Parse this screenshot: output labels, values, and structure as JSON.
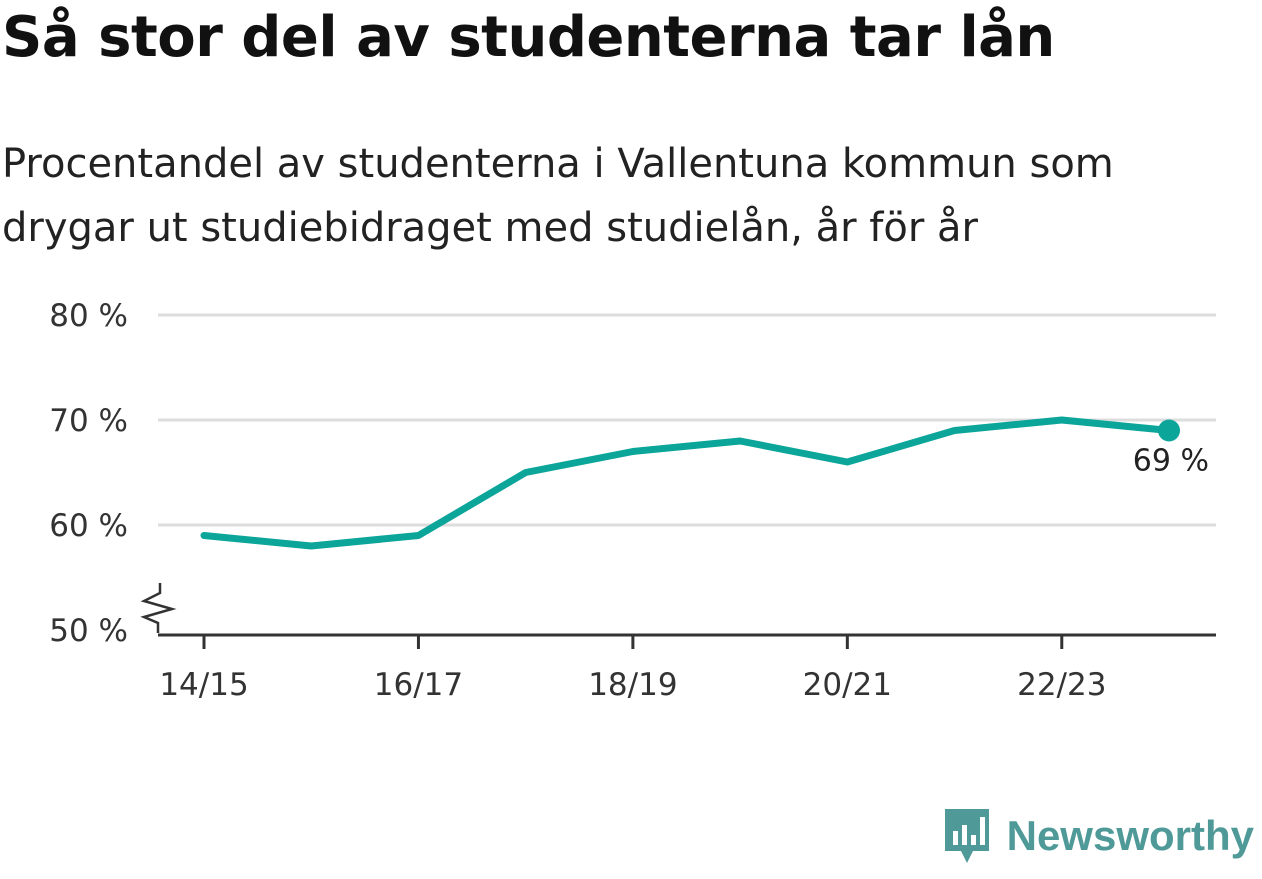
{
  "header": {
    "title": "Så stor del av studenterna tar lån",
    "subtitle": "Procentandel av studenterna i Vallentuna kommun som drygar ut studiebidraget med studielån, år för år"
  },
  "chart_data": {
    "type": "line",
    "x": [
      "14/15",
      "15/16",
      "16/17",
      "17/18",
      "18/19",
      "19/20",
      "20/21",
      "21/22",
      "22/23",
      "23/24"
    ],
    "x_tick_labels": [
      "14/15",
      "16/17",
      "18/19",
      "20/21",
      "22/23"
    ],
    "series": [
      {
        "values": [
          59,
          58,
          59,
          65,
          67,
          68,
          66,
          69,
          70,
          69
        ]
      }
    ],
    "y_ticks": [
      50,
      60,
      70,
      80
    ],
    "y_tick_labels": [
      "50 %",
      "60 %",
      "70 %",
      "80 %"
    ],
    "ylim": [
      50,
      80
    ],
    "axis_break": true,
    "grid": true,
    "end_label": "69 %",
    "line_color": "#0ba59a",
    "grid_color": "#dddddd",
    "axis_color": "#333333"
  },
  "brand": {
    "name": "Newsworthy",
    "color": "#4f9a98"
  }
}
